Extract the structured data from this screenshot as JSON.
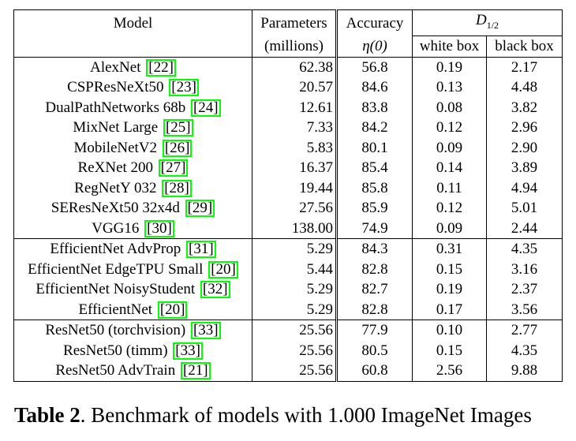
{
  "table": {
    "headers": {
      "model": "Model",
      "params_line1": "Parameters",
      "params_line2": "(millions)",
      "acc_line1": "Accuracy",
      "acc_line2": "η(0)",
      "d_symbol": "D",
      "d_subscript": "1/2",
      "white_box": "white box",
      "black_box": "black box"
    },
    "rows": [
      {
        "model": "AlexNet",
        "ref": "22",
        "params": "62.38",
        "acc": "56.8",
        "wb": "0.19",
        "bb": "2.17",
        "sep": false,
        "bold_acc": false,
        "bold_wb": false,
        "bold_bb": false
      },
      {
        "model": "CSPResNeXt50",
        "ref": "23",
        "params": "20.57",
        "acc": "84.6",
        "wb": "0.13",
        "bb": "4.48",
        "sep": false,
        "bold_acc": false,
        "bold_wb": false,
        "bold_bb": false
      },
      {
        "model": "DualPathNetworks 68b",
        "ref": "24",
        "params": "12.61",
        "acc": "83.8",
        "wb": "0.08",
        "bb": "3.82",
        "sep": false,
        "bold_acc": false,
        "bold_wb": false,
        "bold_bb": false
      },
      {
        "model": "MixNet Large",
        "ref": "25",
        "params": "7.33",
        "acc": "84.2",
        "wb": "0.12",
        "bb": "2.96",
        "sep": false,
        "bold_acc": false,
        "bold_wb": false,
        "bold_bb": false
      },
      {
        "model": "MobileNetV2",
        "ref": "26",
        "params": "5.83",
        "acc": "80.1",
        "wb": "0.09",
        "bb": "2.90",
        "sep": false,
        "bold_acc": false,
        "bold_wb": false,
        "bold_bb": false
      },
      {
        "model": "ReXNet 200",
        "ref": "27",
        "params": "16.37",
        "acc": "85.4",
        "wb": "0.14",
        "bb": "3.89",
        "sep": false,
        "bold_acc": false,
        "bold_wb": false,
        "bold_bb": false
      },
      {
        "model": "RegNetY 032",
        "ref": "28",
        "params": "19.44",
        "acc": "85.8",
        "wb": "0.11",
        "bb": "4.94",
        "sep": false,
        "bold_acc": false,
        "bold_wb": false,
        "bold_bb": false
      },
      {
        "model": "SEResNeXt50 32x4d",
        "ref": "29",
        "params": "27.56",
        "acc": "85.9",
        "wb": "0.12",
        "bb": "5.01",
        "sep": false,
        "bold_acc": true,
        "bold_wb": false,
        "bold_bb": true
      },
      {
        "model": "VGG16",
        "ref": "30",
        "params": "138.00",
        "acc": "74.9",
        "wb": "0.09",
        "bb": "2.44",
        "sep": false,
        "bold_acc": false,
        "bold_wb": false,
        "bold_bb": false
      },
      {
        "model": "EfficientNet AdvProp",
        "ref": "31",
        "params": "5.29",
        "acc": "84.3",
        "wb": "0.31",
        "bb": "4.35",
        "sep": true,
        "bold_acc": false,
        "bold_wb": true,
        "bold_bb": false
      },
      {
        "model": "EfficientNet EdgeTPU Small",
        "ref": "20",
        "params": "5.44",
        "acc": "82.8",
        "wb": "0.15",
        "bb": "3.16",
        "sep": false,
        "bold_acc": false,
        "bold_wb": false,
        "bold_bb": false
      },
      {
        "model": "EfficientNet NoisyStudent",
        "ref": "32",
        "params": "5.29",
        "acc": "82.7",
        "wb": "0.19",
        "bb": "2.37",
        "sep": false,
        "bold_acc": false,
        "bold_wb": false,
        "bold_bb": false
      },
      {
        "model": "EfficientNet",
        "ref": "20",
        "params": "5.29",
        "acc": "82.8",
        "wb": "0.17",
        "bb": "3.56",
        "sep": false,
        "bold_acc": false,
        "bold_wb": false,
        "bold_bb": false
      },
      {
        "model": "ResNet50 (torchvision)",
        "ref": "33",
        "params": "25.56",
        "acc": "77.9",
        "wb": "0.10",
        "bb": "2.77",
        "sep": true,
        "bold_acc": false,
        "bold_wb": false,
        "bold_bb": false
      },
      {
        "model": "ResNet50 (timm)",
        "ref": "33",
        "params": "25.56",
        "acc": "80.5",
        "wb": "0.15",
        "bb": "4.35",
        "sep": false,
        "bold_acc": false,
        "bold_wb": false,
        "bold_bb": false
      },
      {
        "model": "ResNet50 AdvTrain",
        "ref": "21",
        "params": "25.56",
        "acc": "60.8",
        "wb": "2.56",
        "bb": "9.88",
        "sep": false,
        "bold_acc": false,
        "bold_wb": true,
        "bold_bb": true
      }
    ]
  },
  "caption": {
    "label": "Table 2",
    "text": ". Benchmark of models with 1.000 ImageNet Images"
  },
  "colors": {
    "ref_box": "#00ff00"
  }
}
